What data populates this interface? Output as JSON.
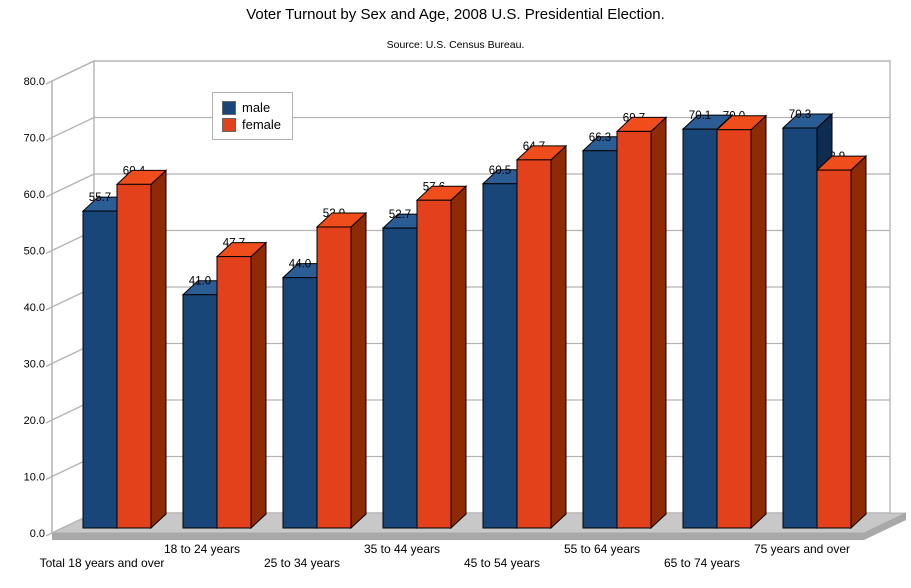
{
  "chart_data": {
    "type": "bar",
    "projection": "3d",
    "title": "Voter Turnout by Sex and Age, 2008 U.S. Presidential Election.",
    "subtitle": "Source: U.S. Census Bureau.",
    "categories": [
      "Total 18 years and over",
      "18 to 24 years",
      "25 to 34 years",
      "35 to 44 years",
      "45 to 54 years",
      "55 to 64 years",
      "65 to 74 years",
      "75 years and over"
    ],
    "series": [
      {
        "name": "male",
        "color": "#184678",
        "color_top": "#2B5C94",
        "color_side": "#0E2C50",
        "values": [
          55.7,
          41.0,
          44.0,
          52.7,
          60.5,
          66.3,
          70.1,
          70.3
        ]
      },
      {
        "name": "female",
        "color": "#E2411C",
        "color_top": "#EF4E1C",
        "color_side": "#8F2A06",
        "values": [
          60.4,
          47.7,
          52.9,
          57.6,
          64.7,
          69.7,
          70.0,
          62.9
        ]
      }
    ],
    "xlabel": "",
    "ylabel": "",
    "ylim": [
      0,
      80
    ],
    "ytick_step": 10,
    "ytick_decimals": 1,
    "grid": true,
    "value_labels": true,
    "value_label_decimals": 1,
    "legend_position": "top-left-inside",
    "colors": {
      "grid": "#B4B4B4",
      "wall": "#FFFFFF",
      "floor_top": "#C8C8C8",
      "floor_side": "#A9A9A9",
      "text": "#000000",
      "bar_outline": "#000000"
    }
  }
}
